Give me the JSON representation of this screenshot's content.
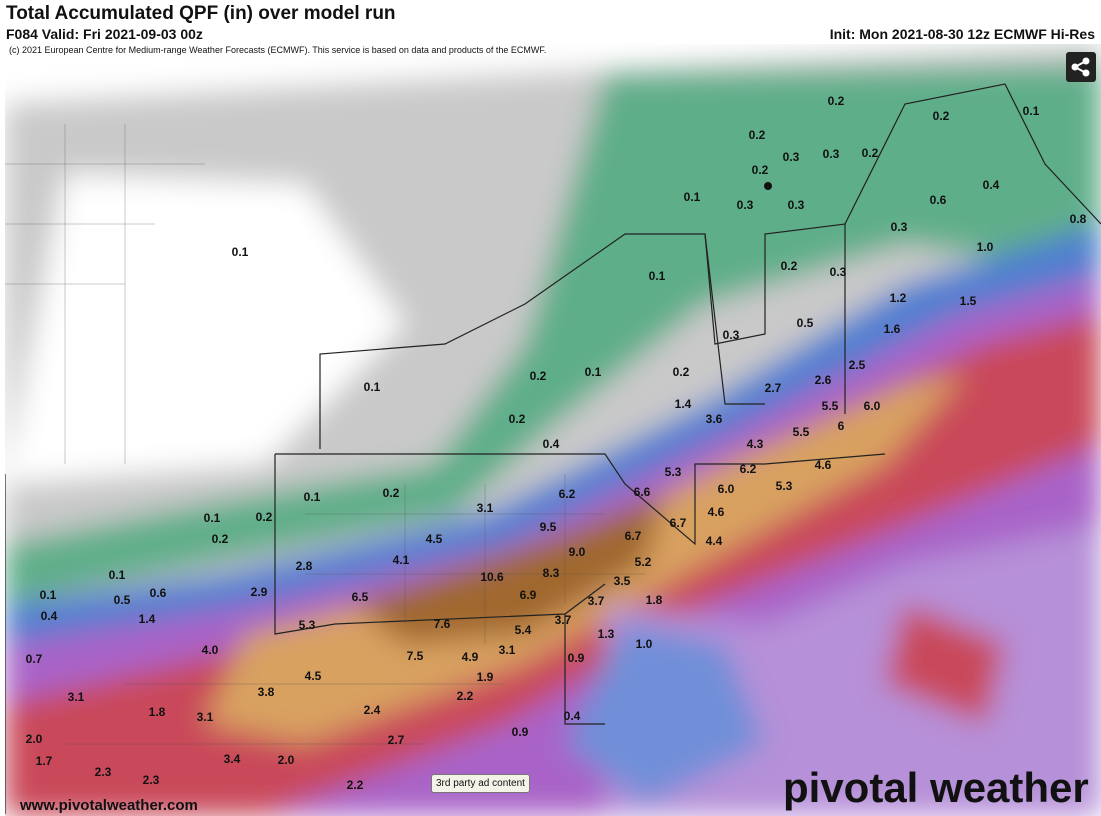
{
  "header": {
    "title": "Total Accumulated QPF (in) over model run",
    "valid": "F084 Valid: Fri 2021-09-03 00z",
    "init": "Init: Mon 2021-08-30 12z ECMWF Hi-Res",
    "copyright": "(c) 2021 European Centre for Medium-range Weather Forecasts (ECMWF). This service is based on data and products of the ECMWF."
  },
  "labels": [
    "0.2",
    "0.1",
    "0.2",
    "0.2",
    "0.3",
    "0.3",
    "0.2",
    "0.2",
    "0.1",
    "0.3",
    "0.3",
    "0.4",
    "0.6",
    "0.3",
    "0.8",
    "1.0",
    "0.1",
    "0.2",
    "0.3",
    "0.1",
    "1.2",
    "1.5",
    "1.6",
    "0.5",
    "0.3",
    "0.2",
    "0.1",
    "0.2",
    "0.1",
    "2.7",
    "2.6",
    "2.5",
    "1.4",
    "5.5",
    "6.0",
    "0.2",
    "3.6",
    "5.5",
    "6",
    "0.4",
    "4.3",
    "5.3",
    "6.2",
    "4.6",
    "6.2",
    "0.1",
    "0.2",
    "6.6",
    "6.0",
    "5.3",
    "3.1",
    "0.1",
    "0.2",
    "6.7",
    "4.6",
    "9.5",
    "4.5",
    "0.2",
    "6.7",
    "4.4",
    "9.0",
    "4.1",
    "2.8",
    "5.2",
    "10.6",
    "8.3",
    "0.1",
    "3.5",
    "0.1",
    "0.5",
    "0.6",
    "2.9",
    "6.5",
    "6.9",
    "1.8",
    "3.7",
    "0.4",
    "1.4",
    "5.3",
    "7.6",
    "3.7",
    "5.4",
    "1.3",
    "1.0",
    "4.0",
    "0.7",
    "7.5",
    "4.9",
    "3.1",
    "0.9",
    "4.5",
    "3.8",
    "1.9",
    "3.1",
    "2.2",
    "1.8",
    "3.1",
    "2.4",
    "0.4",
    "0.9",
    "2.0",
    "2.7",
    "1.7",
    "3.4",
    "2.0",
    "2.3",
    "2.3",
    "2.2"
  ],
  "footer": {
    "ad": "3rd party ad content",
    "url": "www.pivotalweather.com",
    "logo": "pivotal weather"
  }
}
